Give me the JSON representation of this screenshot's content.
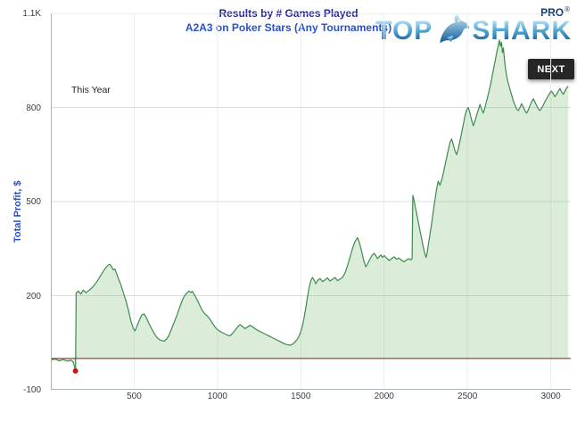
{
  "logo": {
    "word_top": "TOP",
    "word_shark": "SHARK",
    "pro": "PRO",
    "registered": "®"
  },
  "next_button": {
    "label": "NEXT"
  },
  "chart_data": {
    "type": "area",
    "title": "Results by # Games Played",
    "subtitle": "A2A3 on Poker Stars (Any Tournaments)",
    "xlabel": "",
    "ylabel": "Total Profit, $",
    "xlim": [
      0,
      3120
    ],
    "ylim": [
      -100,
      1100
    ],
    "grid": true,
    "grid_color_h": "#d8dde2",
    "grid_color_v": "#e9edf0",
    "axis_color": "#a8b4bc",
    "legend": "none",
    "annotations": [
      {
        "label": "This Year"
      }
    ],
    "x_ticks": [
      {
        "value": 500,
        "label": "500"
      },
      {
        "value": 1000,
        "label": "1000"
      },
      {
        "value": 1500,
        "label": "1500"
      },
      {
        "value": 2000,
        "label": "2000"
      },
      {
        "value": 2500,
        "label": "2500"
      },
      {
        "value": 3000,
        "label": "3000"
      }
    ],
    "y_ticks": [
      {
        "value": -100,
        "label": "-100"
      },
      {
        "value": 200,
        "label": "200"
      },
      {
        "value": 500,
        "label": "500"
      },
      {
        "value": 800,
        "label": "800"
      },
      {
        "value": 1100,
        "label": "1.1K"
      }
    ],
    "reference_line": {
      "y": 0,
      "color": "#8b1a1a"
    },
    "marker": {
      "x": 148,
      "y": -40,
      "color": "#cc1111",
      "radius": 3
    },
    "series": [
      {
        "name": "Total Profit",
        "color": "#3e8a4e",
        "fill": "rgba(125,185,120,0.28)",
        "points": [
          [
            0,
            -5
          ],
          [
            25,
            -2
          ],
          [
            50,
            -8
          ],
          [
            75,
            -4
          ],
          [
            100,
            -9
          ],
          [
            120,
            -6
          ],
          [
            135,
            -12
          ],
          [
            148,
            -40
          ],
          [
            152,
            208
          ],
          [
            165,
            215
          ],
          [
            180,
            205
          ],
          [
            195,
            218
          ],
          [
            210,
            210
          ],
          [
            225,
            215
          ],
          [
            240,
            222
          ],
          [
            255,
            230
          ],
          [
            270,
            240
          ],
          [
            285,
            252
          ],
          [
            300,
            265
          ],
          [
            315,
            278
          ],
          [
            330,
            290
          ],
          [
            345,
            298
          ],
          [
            355,
            300
          ],
          [
            365,
            292
          ],
          [
            375,
            282
          ],
          [
            385,
            285
          ],
          [
            395,
            270
          ],
          [
            405,
            255
          ],
          [
            420,
            235
          ],
          [
            435,
            210
          ],
          [
            450,
            185
          ],
          [
            465,
            155
          ],
          [
            480,
            120
          ],
          [
            495,
            95
          ],
          [
            505,
            88
          ],
          [
            515,
            100
          ],
          [
            530,
            120
          ],
          [
            545,
            138
          ],
          [
            560,
            142
          ],
          [
            575,
            128
          ],
          [
            590,
            110
          ],
          [
            605,
            95
          ],
          [
            620,
            80
          ],
          [
            635,
            68
          ],
          [
            650,
            60
          ],
          [
            665,
            57
          ],
          [
            680,
            55
          ],
          [
            695,
            62
          ],
          [
            710,
            75
          ],
          [
            725,
            95
          ],
          [
            740,
            115
          ],
          [
            755,
            135
          ],
          [
            770,
            158
          ],
          [
            785,
            180
          ],
          [
            800,
            198
          ],
          [
            815,
            208
          ],
          [
            830,
            215
          ],
          [
            840,
            210
          ],
          [
            850,
            214
          ],
          [
            865,
            200
          ],
          [
            880,
            185
          ],
          [
            895,
            168
          ],
          [
            910,
            152
          ],
          [
            925,
            142
          ],
          [
            940,
            135
          ],
          [
            955,
            125
          ],
          [
            970,
            112
          ],
          [
            985,
            100
          ],
          [
            1000,
            92
          ],
          [
            1015,
            86
          ],
          [
            1030,
            82
          ],
          [
            1045,
            78
          ],
          [
            1060,
            74
          ],
          [
            1075,
            72
          ],
          [
            1090,
            80
          ],
          [
            1105,
            90
          ],
          [
            1120,
            100
          ],
          [
            1135,
            108
          ],
          [
            1150,
            102
          ],
          [
            1165,
            95
          ],
          [
            1180,
            100
          ],
          [
            1195,
            106
          ],
          [
            1210,
            101
          ],
          [
            1225,
            95
          ],
          [
            1240,
            90
          ],
          [
            1255,
            86
          ],
          [
            1270,
            82
          ],
          [
            1285,
            78
          ],
          [
            1300,
            74
          ],
          [
            1315,
            70
          ],
          [
            1330,
            66
          ],
          [
            1345,
            62
          ],
          [
            1360,
            58
          ],
          [
            1375,
            54
          ],
          [
            1390,
            50
          ],
          [
            1405,
            46
          ],
          [
            1420,
            44
          ],
          [
            1435,
            42
          ],
          [
            1450,
            45
          ],
          [
            1465,
            52
          ],
          [
            1480,
            62
          ],
          [
            1490,
            72
          ],
          [
            1500,
            85
          ],
          [
            1510,
            105
          ],
          [
            1520,
            130
          ],
          [
            1530,
            162
          ],
          [
            1540,
            196
          ],
          [
            1550,
            225
          ],
          [
            1560,
            248
          ],
          [
            1570,
            258
          ],
          [
            1580,
            250
          ],
          [
            1590,
            238
          ],
          [
            1600,
            248
          ],
          [
            1615,
            255
          ],
          [
            1630,
            245
          ],
          [
            1645,
            250
          ],
          [
            1660,
            257
          ],
          [
            1675,
            247
          ],
          [
            1690,
            252
          ],
          [
            1705,
            258
          ],
          [
            1720,
            248
          ],
          [
            1735,
            253
          ],
          [
            1750,
            258
          ],
          [
            1765,
            272
          ],
          [
            1780,
            295
          ],
          [
            1795,
            322
          ],
          [
            1810,
            350
          ],
          [
            1825,
            372
          ],
          [
            1840,
            385
          ],
          [
            1850,
            372
          ],
          [
            1860,
            352
          ],
          [
            1870,
            330
          ],
          [
            1880,
            308
          ],
          [
            1890,
            292
          ],
          [
            1900,
            300
          ],
          [
            1910,
            312
          ],
          [
            1920,
            322
          ],
          [
            1930,
            330
          ],
          [
            1940,
            335
          ],
          [
            1950,
            328
          ],
          [
            1960,
            318
          ],
          [
            1970,
            324
          ],
          [
            1980,
            330
          ],
          [
            1990,
            322
          ],
          [
            2000,
            328
          ],
          [
            2015,
            320
          ],
          [
            2030,
            312
          ],
          [
            2045,
            318
          ],
          [
            2060,
            324
          ],
          [
            2075,
            316
          ],
          [
            2090,
            320
          ],
          [
            2105,
            313
          ],
          [
            2120,
            308
          ],
          [
            2135,
            314
          ],
          [
            2150,
            318
          ],
          [
            2160,
            314
          ],
          [
            2168,
            318
          ],
          [
            2172,
            520
          ],
          [
            2178,
            508
          ],
          [
            2185,
            488
          ],
          [
            2195,
            462
          ],
          [
            2205,
            435
          ],
          [
            2215,
            408
          ],
          [
            2225,
            382
          ],
          [
            2235,
            355
          ],
          [
            2245,
            332
          ],
          [
            2252,
            322
          ],
          [
            2258,
            335
          ],
          [
            2265,
            360
          ],
          [
            2275,
            395
          ],
          [
            2285,
            430
          ],
          [
            2295,
            468
          ],
          [
            2305,
            505
          ],
          [
            2315,
            540
          ],
          [
            2325,
            565
          ],
          [
            2335,
            552
          ],
          [
            2345,
            568
          ],
          [
            2355,
            590
          ],
          [
            2365,
            615
          ],
          [
            2375,
            640
          ],
          [
            2385,
            665
          ],
          [
            2395,
            688
          ],
          [
            2405,
            700
          ],
          [
            2415,
            682
          ],
          [
            2425,
            662
          ],
          [
            2435,
            650
          ],
          [
            2445,
            668
          ],
          [
            2455,
            692
          ],
          [
            2465,
            718
          ],
          [
            2475,
            745
          ],
          [
            2485,
            772
          ],
          [
            2495,
            792
          ],
          [
            2505,
            800
          ],
          [
            2515,
            782
          ],
          [
            2525,
            760
          ],
          [
            2535,
            742
          ],
          [
            2545,
            756
          ],
          [
            2555,
            775
          ],
          [
            2565,
            792
          ],
          [
            2575,
            810
          ],
          [
            2585,
            795
          ],
          [
            2595,
            782
          ],
          [
            2605,
            800
          ],
          [
            2615,
            820
          ],
          [
            2625,
            842
          ],
          [
            2635,
            865
          ],
          [
            2645,
            890
          ],
          [
            2655,
            918
          ],
          [
            2665,
            945
          ],
          [
            2675,
            972
          ],
          [
            2685,
            998
          ],
          [
            2692,
            1015
          ],
          [
            2698,
            995
          ],
          [
            2704,
            1008
          ],
          [
            2710,
            975
          ],
          [
            2716,
            990
          ],
          [
            2722,
            955
          ],
          [
            2728,
            925
          ],
          [
            2735,
            900
          ],
          [
            2745,
            878
          ],
          [
            2755,
            858
          ],
          [
            2765,
            840
          ],
          [
            2775,
            822
          ],
          [
            2785,
            808
          ],
          [
            2795,
            795
          ],
          [
            2805,
            790
          ],
          [
            2815,
            800
          ],
          [
            2825,
            812
          ],
          [
            2835,
            802
          ],
          [
            2845,
            790
          ],
          [
            2855,
            782
          ],
          [
            2865,
            792
          ],
          [
            2875,
            805
          ],
          [
            2885,
            818
          ],
          [
            2895,
            828
          ],
          [
            2905,
            818
          ],
          [
            2915,
            806
          ],
          [
            2925,
            796
          ],
          [
            2935,
            790
          ],
          [
            2945,
            798
          ],
          [
            2955,
            808
          ],
          [
            2965,
            818
          ],
          [
            2975,
            828
          ],
          [
            2985,
            838
          ],
          [
            2995,
            846
          ],
          [
            3005,
            852
          ],
          [
            3015,
            844
          ],
          [
            3025,
            834
          ],
          [
            3035,
            842
          ],
          [
            3045,
            852
          ],
          [
            3055,
            860
          ],
          [
            3065,
            850
          ],
          [
            3075,
            842
          ],
          [
            3085,
            852
          ],
          [
            3095,
            862
          ],
          [
            3105,
            868
          ]
        ]
      }
    ]
  }
}
